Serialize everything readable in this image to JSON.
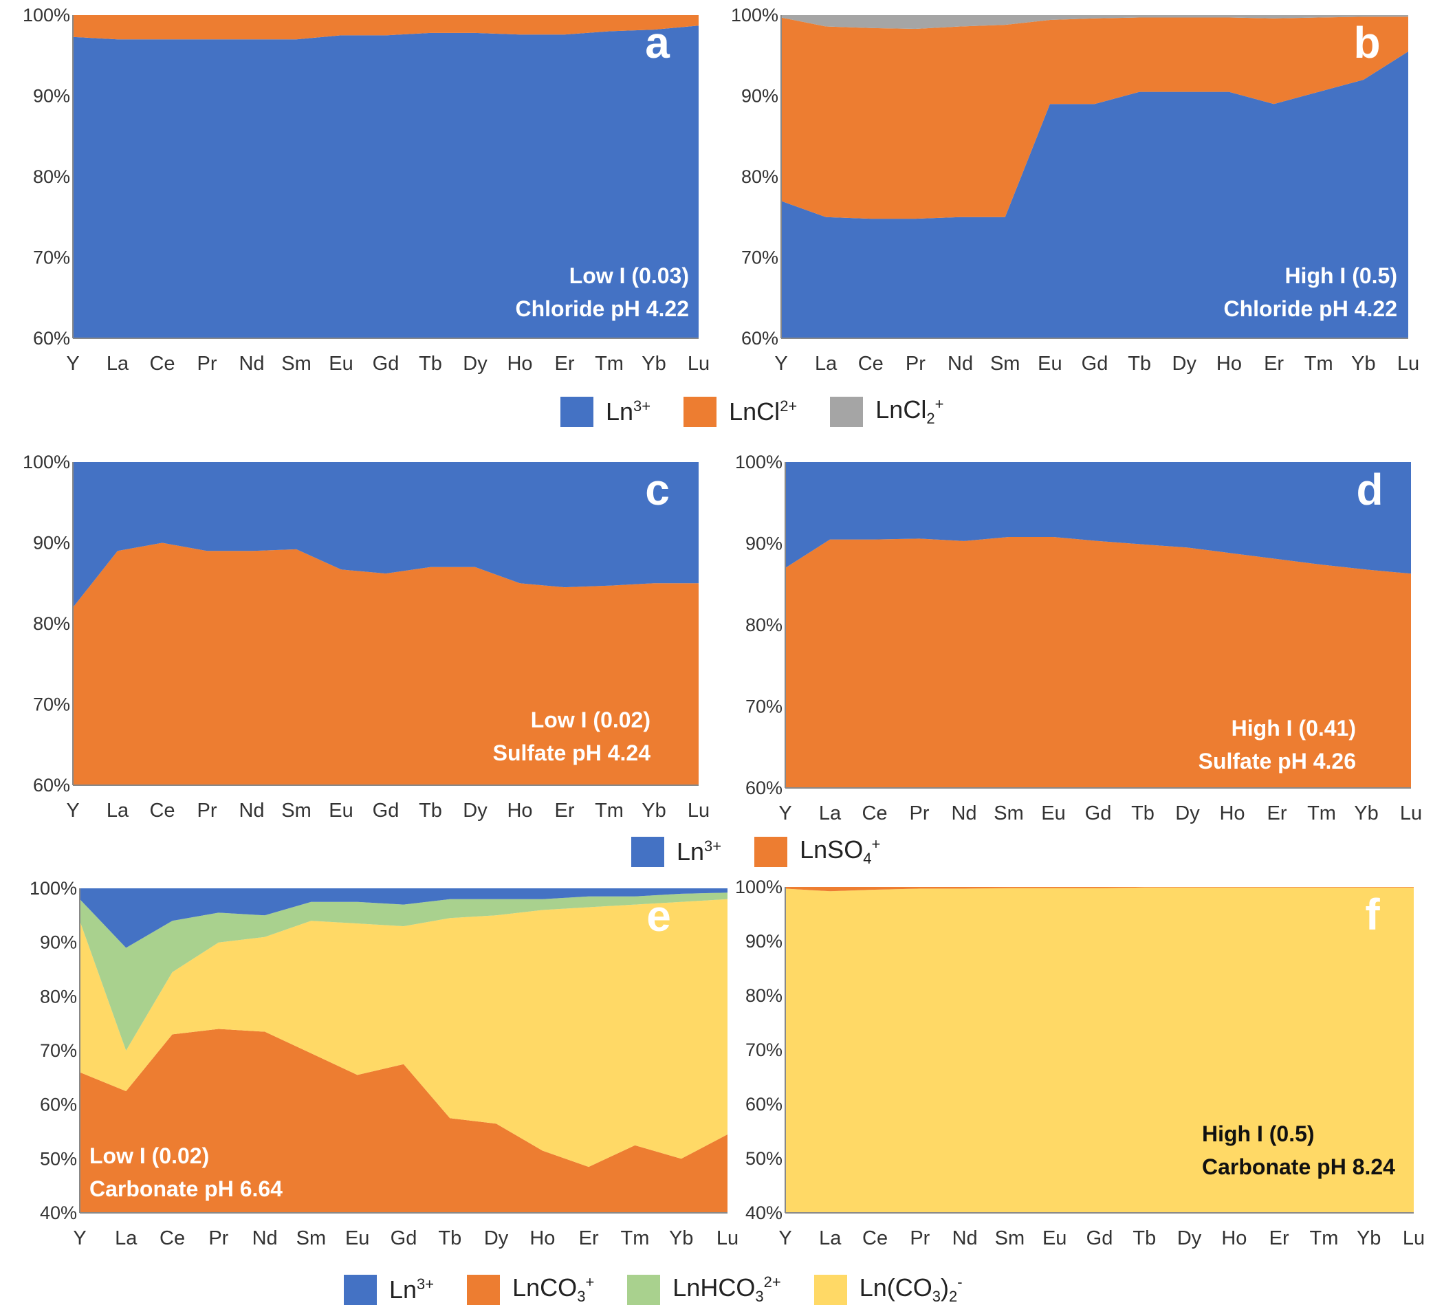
{
  "colors": {
    "Ln3+": "#4472C4",
    "LnCl2+": "#ED7D31",
    "LnCl2_plus": "#A5A5A5",
    "LnSO4+": "#ED7D31",
    "LnCO3+": "#ED7D31",
    "LnHCO3_2+": "#A9D18E",
    "Ln(CO3)2-": "#FFD966"
  },
  "legends": {
    "chloride": [
      {
        "key": "Ln3+",
        "base": "Ln",
        "sup": "3+",
        "sub": ""
      },
      {
        "key": "LnCl2+",
        "base": "LnCl",
        "sup": "2+",
        "sub": ""
      },
      {
        "key": "LnCl2_plus",
        "base": "LnCl",
        "sub": "2",
        "sup": "+"
      }
    ],
    "sulfate": [
      {
        "key": "Ln3+",
        "base": "Ln",
        "sup": "3+",
        "sub": ""
      },
      {
        "key": "LnSO4+",
        "base": "LnSO",
        "sub": "4",
        "sup": "+"
      }
    ],
    "carbonate": [
      {
        "key": "Ln3+",
        "base": "Ln",
        "sup": "3+",
        "sub": ""
      },
      {
        "key": "LnCO3+",
        "base": "LnCO",
        "sub": "3",
        "sup": "+"
      },
      {
        "key": "LnHCO3_2+",
        "base": "LnHCO",
        "sub": "3",
        "sup": "2+"
      },
      {
        "key": "Ln(CO3)2-",
        "base": "Ln(CO",
        "sub": "3",
        "base2": ")",
        "sub2": "2",
        "sup": "-"
      }
    ]
  },
  "chart_data": [
    {
      "type": "area",
      "stacked": "percent",
      "panel_label": "a",
      "annotation": [
        "Low I (0.03)",
        "Chloride pH 4.22"
      ],
      "categories": [
        "Y",
        "La",
        "Ce",
        "Pr",
        "Nd",
        "Sm",
        "Eu",
        "Gd",
        "Tb",
        "Dy",
        "Ho",
        "Er",
        "Tm",
        "Yb",
        "Lu"
      ],
      "ylim": [
        60,
        100
      ],
      "yticks": [
        60,
        70,
        80,
        90,
        100
      ],
      "series": [
        {
          "name": "Ln3+",
          "values": [
            97.3,
            97.0,
            97.0,
            97.0,
            97.0,
            97.0,
            97.5,
            97.5,
            97.8,
            97.8,
            97.6,
            97.6,
            98.0,
            98.2,
            98.7
          ]
        },
        {
          "name": "LnCl2+",
          "values": [
            2.7,
            3.0,
            3.0,
            3.0,
            3.0,
            3.0,
            2.5,
            2.5,
            2.2,
            2.2,
            2.4,
            2.4,
            2.0,
            1.8,
            1.3
          ]
        }
      ]
    },
    {
      "type": "area",
      "stacked": "percent",
      "panel_label": "b",
      "annotation": [
        "High I  (0.5)",
        "Chloride pH 4.22"
      ],
      "categories": [
        "Y",
        "La",
        "Ce",
        "Pr",
        "Nd",
        "Sm",
        "Eu",
        "Gd",
        "Tb",
        "Dy",
        "Ho",
        "Er",
        "Tm",
        "Yb",
        "Lu"
      ],
      "ylim": [
        60,
        100
      ],
      "yticks": [
        60,
        70,
        80,
        90,
        100
      ],
      "series": [
        {
          "name": "Ln3+",
          "values": [
            77.0,
            75.0,
            74.8,
            74.8,
            75.0,
            75.0,
            89.0,
            89.0,
            90.5,
            90.5,
            90.5,
            89.0,
            90.5,
            92.0,
            95.5
          ]
        },
        {
          "name": "LnCl2+",
          "values": [
            22.7,
            23.6,
            23.6,
            23.5,
            23.6,
            23.8,
            10.4,
            10.6,
            9.2,
            9.2,
            9.2,
            10.6,
            9.2,
            7.8,
            4.3
          ]
        },
        {
          "name": "LnCl2_plus",
          "values": [
            0.3,
            1.4,
            1.6,
            1.7,
            1.4,
            1.2,
            0.6,
            0.4,
            0.3,
            0.3,
            0.3,
            0.4,
            0.3,
            0.2,
            0.2
          ]
        }
      ]
    },
    {
      "type": "area",
      "stacked": "percent",
      "panel_label": "c",
      "annotation": [
        "Low I (0.02)",
        "Sulfate pH 4.24"
      ],
      "categories": [
        "Y",
        "La",
        "Ce",
        "Pr",
        "Nd",
        "Sm",
        "Eu",
        "Gd",
        "Tb",
        "Dy",
        "Ho",
        "Er",
        "Tm",
        "Yb",
        "Lu"
      ],
      "ylim": [
        60,
        100
      ],
      "yticks": [
        60,
        70,
        80,
        90,
        100
      ],
      "series": [
        {
          "name": "LnSO4+",
          "values": [
            82.0,
            89.0,
            90.0,
            89.0,
            89.0,
            89.2,
            86.7,
            86.2,
            87.0,
            87.0,
            85.0,
            84.5,
            84.7,
            85.0,
            85.0
          ]
        },
        {
          "name": "Ln3+",
          "values": [
            18.0,
            11.0,
            10.0,
            11.0,
            11.0,
            10.8,
            13.3,
            13.8,
            13.0,
            13.0,
            15.0,
            15.5,
            15.3,
            15.0,
            15.0
          ]
        }
      ]
    },
    {
      "type": "area",
      "stacked": "percent",
      "panel_label": "d",
      "annotation": [
        "High I (0.41)",
        "Sulfate pH 4.26"
      ],
      "categories": [
        "Y",
        "La",
        "Ce",
        "Pr",
        "Nd",
        "Sm",
        "Eu",
        "Gd",
        "Tb",
        "Dy",
        "Ho",
        "Er",
        "Tm",
        "Yb",
        "Lu"
      ],
      "ylim": [
        60,
        100
      ],
      "yticks": [
        60,
        70,
        80,
        90,
        100
      ],
      "series": [
        {
          "name": "LnSO4+",
          "values": [
            87.0,
            90.5,
            90.5,
            90.6,
            90.3,
            90.8,
            90.8,
            90.3,
            89.9,
            89.5,
            88.8,
            88.1,
            87.4,
            86.8,
            86.3
          ]
        },
        {
          "name": "Ln3+",
          "values": [
            13.0,
            9.5,
            9.5,
            9.4,
            9.7,
            9.2,
            9.2,
            9.7,
            10.1,
            10.5,
            11.2,
            11.9,
            12.6,
            13.2,
            13.7
          ]
        }
      ]
    },
    {
      "type": "area",
      "stacked": "percent",
      "panel_label": "e",
      "annotation": [
        "Low I  (0.02)",
        "Carbonate pH 6.64"
      ],
      "categories": [
        "Y",
        "La",
        "Ce",
        "Pr",
        "Nd",
        "Sm",
        "Eu",
        "Gd",
        "Tb",
        "Dy",
        "Ho",
        "Er",
        "Tm",
        "Yb",
        "Lu"
      ],
      "ylim": [
        40,
        100
      ],
      "yticks": [
        40,
        50,
        60,
        70,
        80,
        90,
        100
      ],
      "series": [
        {
          "name": "LnCO3+",
          "values": [
            66.0,
            62.5,
            73.0,
            74.0,
            73.5,
            69.5,
            65.5,
            67.5,
            57.5,
            56.5,
            51.5,
            48.5,
            52.5,
            50.0,
            54.5
          ]
        },
        {
          "name": "Ln(CO3)2-",
          "values": [
            28.0,
            7.5,
            11.5,
            16.0,
            17.5,
            24.5,
            28.0,
            25.5,
            37.0,
            38.5,
            44.5,
            48.0,
            44.5,
            47.5,
            43.5
          ]
        },
        {
          "name": "LnHCO3_2+",
          "values": [
            4.0,
            19.0,
            9.5,
            5.5,
            4.0,
            3.5,
            4.0,
            4.0,
            3.5,
            3.0,
            2.0,
            2.0,
            1.5,
            1.5,
            1.2
          ]
        },
        {
          "name": "Ln3+",
          "values": [
            2.0,
            11.0,
            6.0,
            4.5,
            5.0,
            2.5,
            2.5,
            3.0,
            2.0,
            2.0,
            2.0,
            1.5,
            1.5,
            1.0,
            0.8
          ]
        }
      ]
    },
    {
      "type": "area",
      "stacked": "percent",
      "panel_label": "f",
      "annotation": [
        "High I  (0.5)",
        "Carbonate pH 8.24"
      ],
      "categories": [
        "Y",
        "La",
        "Ce",
        "Pr",
        "Nd",
        "Sm",
        "Eu",
        "Gd",
        "Tb",
        "Dy",
        "Ho",
        "Er",
        "Tm",
        "Yb",
        "Lu"
      ],
      "ylim": [
        40,
        100
      ],
      "yticks": [
        40,
        50,
        60,
        70,
        80,
        90,
        100
      ],
      "series": [
        {
          "name": "Ln(CO3)2-",
          "values": [
            99.7,
            99.2,
            99.5,
            99.7,
            99.7,
            99.8,
            99.8,
            99.8,
            99.9,
            99.9,
            99.9,
            99.9,
            99.9,
            99.9,
            99.9
          ]
        },
        {
          "name": "LnCO3+",
          "values": [
            0.3,
            0.8,
            0.5,
            0.3,
            0.3,
            0.2,
            0.2,
            0.2,
            0.1,
            0.1,
            0.1,
            0.1,
            0.1,
            0.1,
            0.1
          ]
        }
      ]
    }
  ]
}
